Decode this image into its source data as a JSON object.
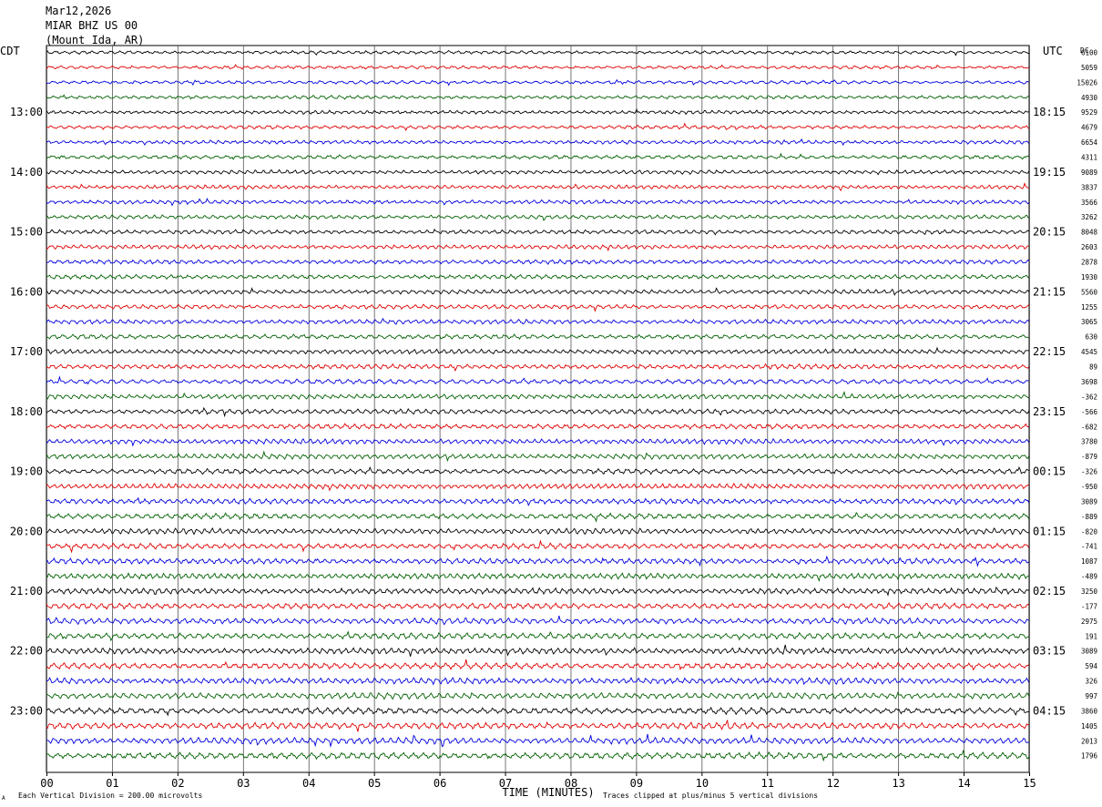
{
  "header": {
    "date": "Mar12,2026",
    "station": "MIAR BHZ US 00",
    "location": "(Mount Ida, AR)"
  },
  "left_tz": "CDT",
  "right_tz": "UTC",
  "dc_label": "DC",
  "footer": {
    "division": "Each Vertical Division =  200.00 microvolts",
    "clip": "Traces clipped at plus/minus 5 vertical divisions",
    "small_mark": "A"
  },
  "colors": {
    "trace_cycle": [
      "#000000",
      "#e00000",
      "#0000e0",
      "#006000"
    ],
    "grid": "#000000"
  },
  "chart_data": {
    "type": "line",
    "title": "",
    "xlabel": "TIME (MINUTES)",
    "ylabel": "",
    "x_ticks": [
      "00",
      "01",
      "02",
      "03",
      "04",
      "05",
      "06",
      "07",
      "08",
      "09",
      "10",
      "11",
      "12",
      "13",
      "14",
      "15"
    ],
    "xlim": [
      0,
      15
    ],
    "traces_per_hour": 4,
    "left_hour_labels": [
      "13:00",
      "14:00",
      "15:00",
      "16:00",
      "17:00",
      "18:00",
      "19:00",
      "20:00",
      "21:00",
      "22:00",
      "23:00"
    ],
    "right_hour_labels": [
      "18:15",
      "19:15",
      "20:15",
      "21:15",
      "22:15",
      "23:15",
      "00:15",
      "01:15",
      "02:15",
      "03:15",
      "04:15"
    ],
    "dc_offsets": [
      "6100",
      "5059",
      "15026",
      "4930",
      "9529",
      "4679",
      "6654",
      "4311",
      "9089",
      "3837",
      "3566",
      "3262",
      "8048",
      "2603",
      "2878",
      "1930",
      "5560",
      "1255",
      "3065",
      "630",
      "4545",
      "89",
      "3698",
      "-362",
      "-566",
      "-682",
      "3780",
      "-879",
      "-326",
      "-950",
      "3089",
      "-889",
      "-820",
      "-741",
      "1087",
      "-489",
      "3250",
      "-177",
      "2975",
      "191",
      "3089",
      "594",
      "326",
      "997",
      "3860",
      "1405",
      "2013",
      "1796"
    ]
  }
}
